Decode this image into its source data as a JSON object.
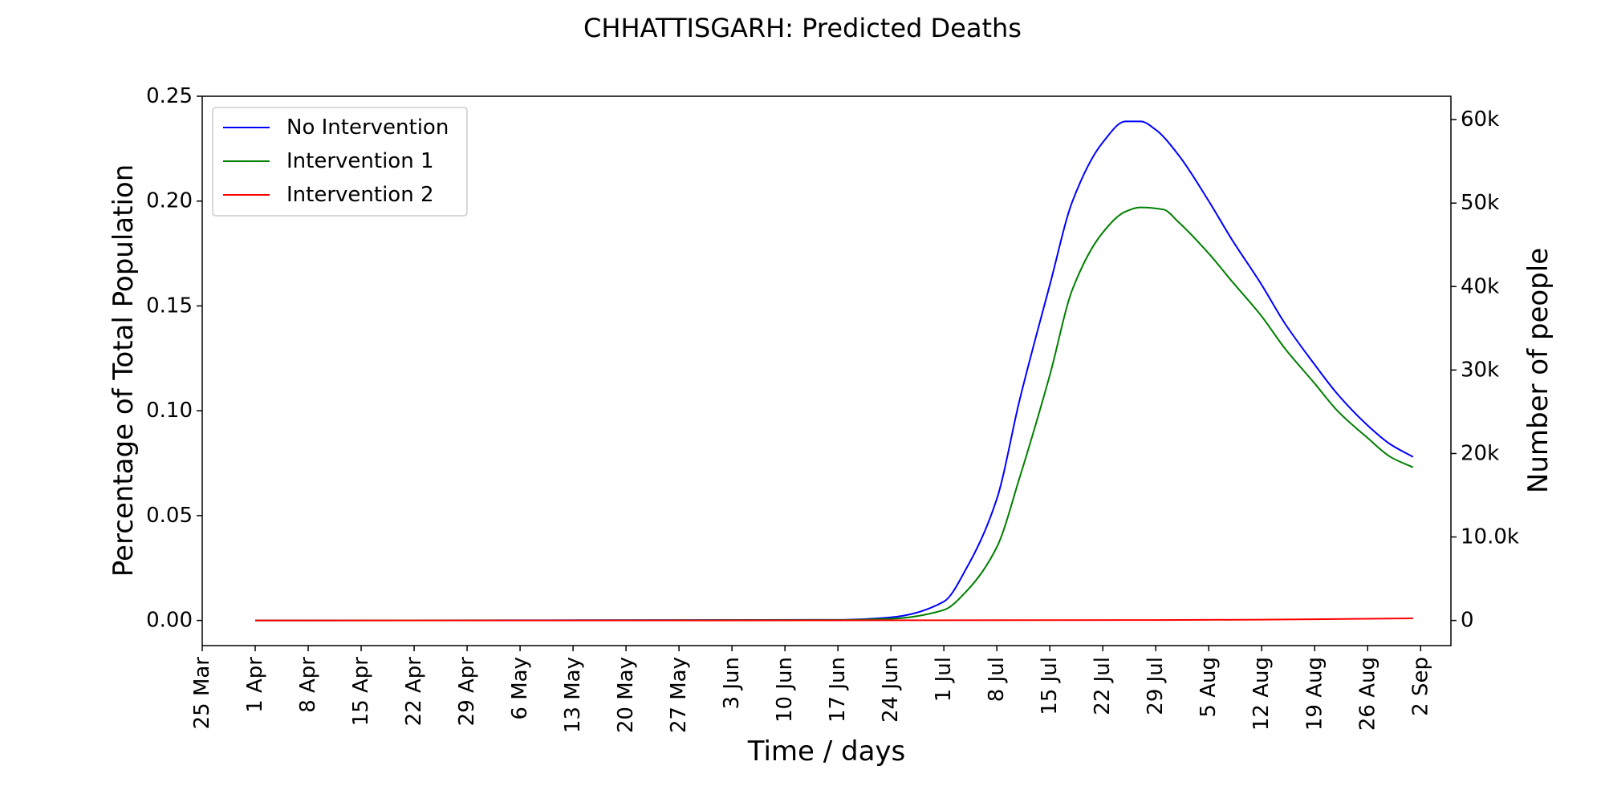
{
  "chart_data": {
    "type": "line",
    "title": "CHHATTISGARH: Predicted Deaths",
    "xlabel": "Time / days",
    "ylabel": "Percentage of Total Population",
    "y2label": "Number of people",
    "x_ticks": [
      "25 Mar",
      "1 Apr",
      "8 Apr",
      "15 Apr",
      "22 Apr",
      "29 Apr",
      "6 May",
      "13 May",
      "20 May",
      "27 May",
      "3 Jun",
      "10 Jun",
      "17 Jun",
      "24 Jun",
      "1 Jul",
      "8 Jul",
      "15 Jul",
      "22 Jul",
      "29 Jul",
      "5 Aug",
      "12 Aug",
      "19 Aug",
      "26 Aug",
      "2 Sep"
    ],
    "y_ticks": [
      "0.00",
      "0.05",
      "0.10",
      "0.15",
      "0.20",
      "0.25"
    ],
    "y2_ticks": [
      "0",
      "10.0k",
      "20k",
      "30k",
      "40k",
      "50k",
      "60k"
    ],
    "ylim": [
      -0.012,
      0.25
    ],
    "y2_values": [
      0,
      10000,
      20000,
      30000,
      40000,
      50000,
      60000
    ],
    "y2_per_percent": 251200,
    "x_start": "25 Mar",
    "x_range": [
      "25 Mar",
      "6 Sep"
    ],
    "grid": false,
    "legend_position": "top-left",
    "series": [
      {
        "name": "No Intervention",
        "color": "#0000ff",
        "x": [
          "1 Apr",
          "17 Jun",
          "24 Jun",
          "1 Jul",
          "4 Jul",
          "8 Jul",
          "11 Jul",
          "15 Jul",
          "18 Jul",
          "22 Jul",
          "25 Jul",
          "27 Jul",
          "29 Jul",
          "1 Aug",
          "5 Aug",
          "8 Aug",
          "12 Aug",
          "15 Aug",
          "19 Aug",
          "22 Aug",
          "26 Aug",
          "29 Aug",
          "1 Sep"
        ],
        "values": [
          0.0,
          0.0003,
          0.0015,
          0.009,
          0.025,
          0.058,
          0.105,
          0.16,
          0.2,
          0.228,
          0.238,
          0.238,
          0.234,
          0.222,
          0.2,
          0.182,
          0.16,
          0.142,
          0.122,
          0.108,
          0.093,
          0.084,
          0.078
        ]
      },
      {
        "name": "Intervention 1",
        "color": "#008000",
        "x": [
          "1 Apr",
          "17 Jun",
          "24 Jun",
          "1 Jul",
          "4 Jul",
          "8 Jul",
          "11 Jul",
          "15 Jul",
          "18 Jul",
          "22 Jul",
          "25 Jul",
          "27 Jul",
          "30 Jul",
          "1 Aug",
          "5 Aug",
          "8 Aug",
          "12 Aug",
          "15 Aug",
          "19 Aug",
          "22 Aug",
          "26 Aug",
          "29 Aug",
          "1 Sep"
        ],
        "values": [
          0.0,
          0.0002,
          0.0008,
          0.005,
          0.014,
          0.035,
          0.068,
          0.117,
          0.158,
          0.185,
          0.195,
          0.197,
          0.196,
          0.19,
          0.175,
          0.162,
          0.145,
          0.13,
          0.113,
          0.1,
          0.087,
          0.078,
          0.073
        ]
      },
      {
        "name": "Intervention 2",
        "color": "#ff0000",
        "x": [
          "1 Apr",
          "1 Jun",
          "1 Jul",
          "29 Jul",
          "12 Aug",
          "26 Aug",
          "1 Sep"
        ],
        "values": [
          0.0,
          0.0,
          0.0001,
          0.0002,
          0.0004,
          0.0008,
          0.001
        ]
      }
    ]
  }
}
